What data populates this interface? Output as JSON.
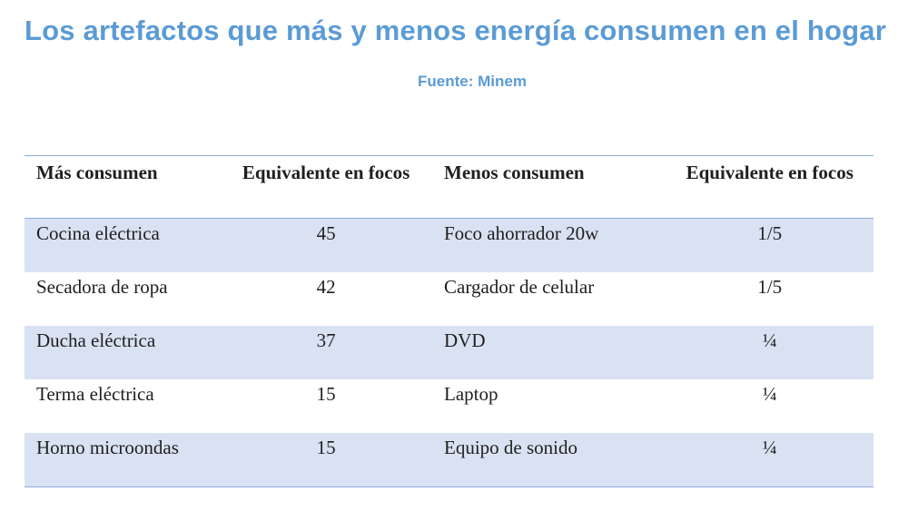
{
  "title": "Los artefactos que más y menos energía consumen en el hogar",
  "source": "Fuente: Minem",
  "table": {
    "headers": [
      "Más consumen",
      "Equivalente en focos",
      "Menos consumen",
      "Equivalente en focos"
    ],
    "rows": [
      [
        "Cocina eléctrica",
        "45",
        "Foco ahorrador 20w",
        "1/5"
      ],
      [
        "Secadora de ropa",
        "42",
        "Cargador de celular",
        "1/5"
      ],
      [
        "Ducha eléctrica",
        "37",
        "DVD",
        "¼"
      ],
      [
        "Terma eléctrica",
        "15",
        "Laptop",
        "¼"
      ],
      [
        "Horno microondas",
        "15",
        "Equipo de sonido",
        "¼"
      ]
    ]
  }
}
